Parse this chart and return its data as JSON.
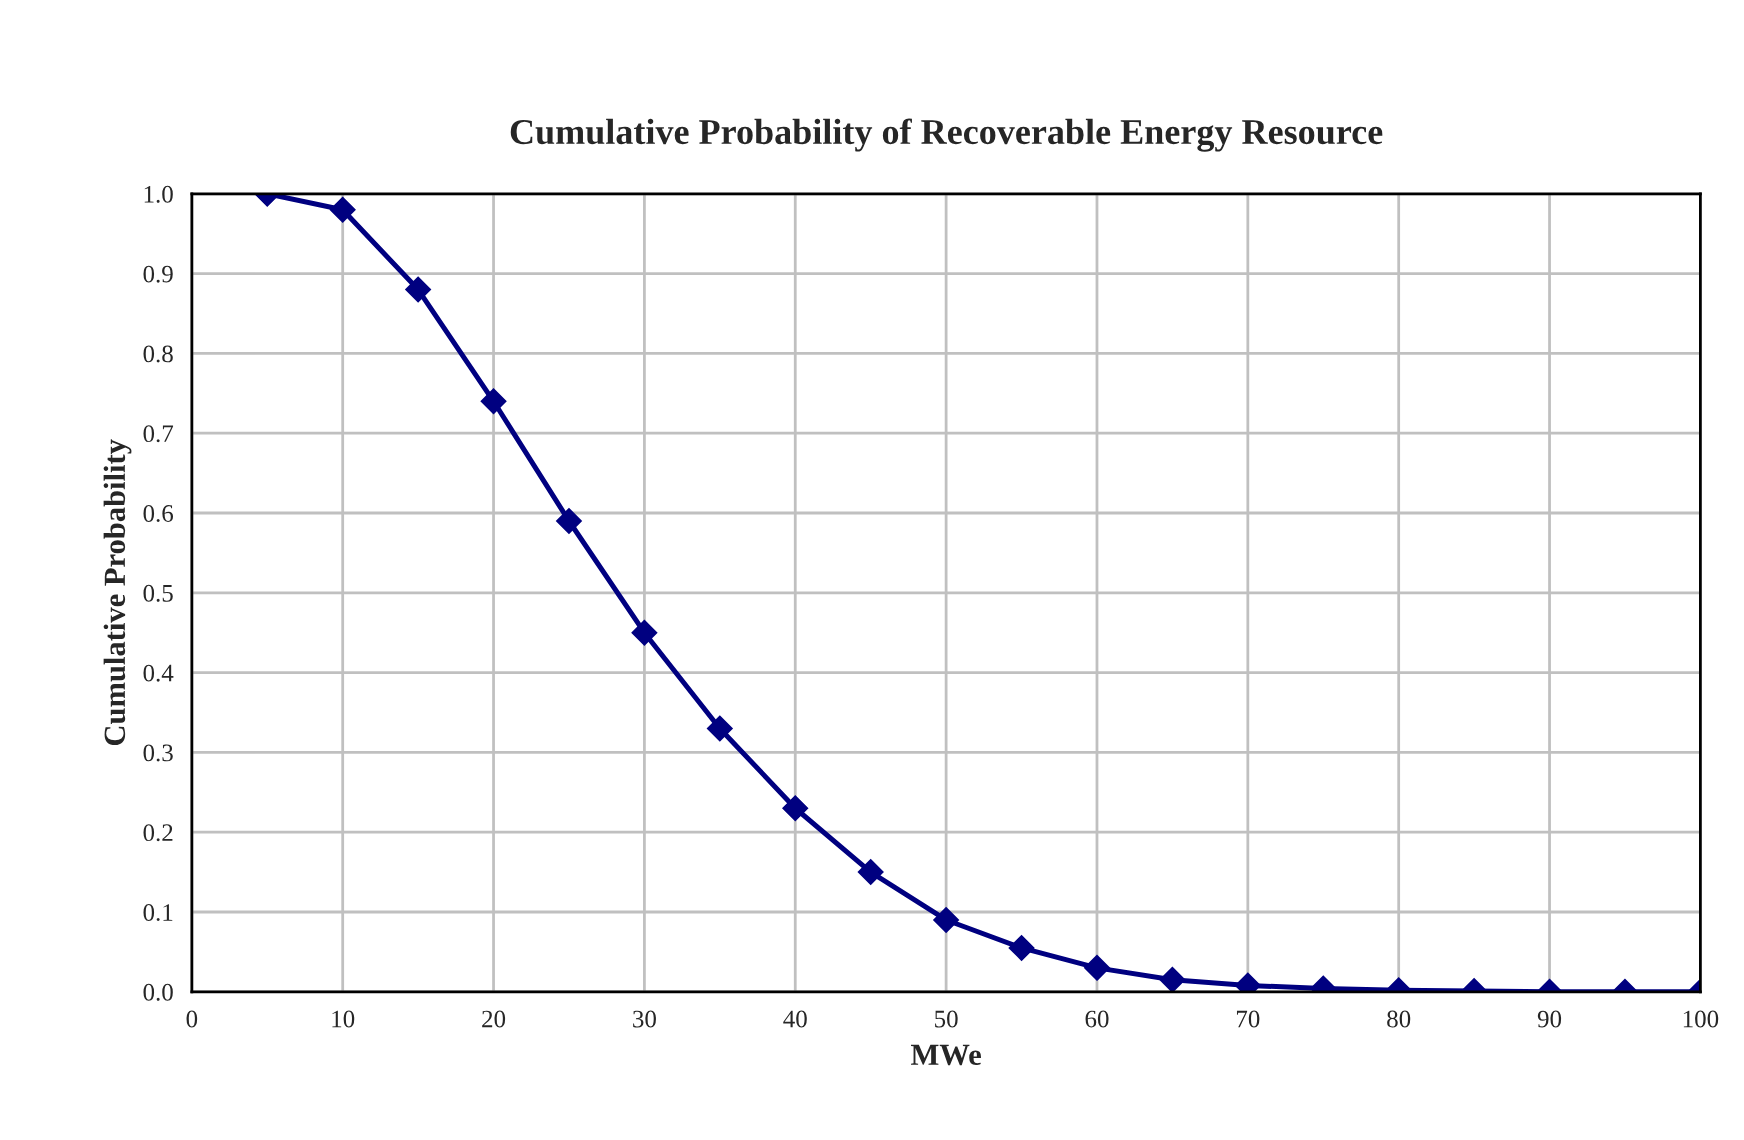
{
  "chart_data": {
    "type": "line",
    "title": "Cumulative Probability of Recoverable Energy Resource",
    "xlabel": "MWe",
    "ylabel": "Cumulative Probability",
    "x": [
      5,
      10,
      15,
      20,
      25,
      30,
      35,
      40,
      45,
      50,
      55,
      60,
      65,
      70,
      75,
      80,
      85,
      90,
      95,
      100
    ],
    "series": [
      {
        "color": "#000080",
        "values": [
          1.0,
          0.98,
          0.88,
          0.74,
          0.59,
          0.45,
          0.33,
          0.23,
          0.15,
          0.09,
          0.055,
          0.03,
          0.015,
          0.008,
          0.004,
          0.002,
          0.001,
          0.0,
          0.0,
          0.0
        ]
      }
    ],
    "xlim": [
      0,
      100
    ],
    "xticks": [
      0,
      10,
      20,
      30,
      40,
      50,
      60,
      70,
      80,
      90,
      100
    ],
    "ylim": [
      0,
      1.0
    ],
    "yticks": [
      {
        "value": 0,
        "label": "0.0"
      },
      {
        "value": 0.1,
        "label": "0.1"
      },
      {
        "value": 0.2,
        "label": "0.2"
      },
      {
        "value": 0.3,
        "label": "0.3"
      },
      {
        "value": 0.4,
        "label": "0.4"
      },
      {
        "value": 0.5,
        "label": "0.5"
      },
      {
        "value": 0.6,
        "label": "0.6"
      },
      {
        "value": 0.7,
        "label": "0.7"
      },
      {
        "value": 0.8,
        "label": "0.8"
      },
      {
        "value": 0.9,
        "label": "0.9"
      },
      {
        "value": 1.0,
        "label": "1.0"
      }
    ],
    "grid": true,
    "marker": "diamond",
    "line_style": "solid"
  }
}
